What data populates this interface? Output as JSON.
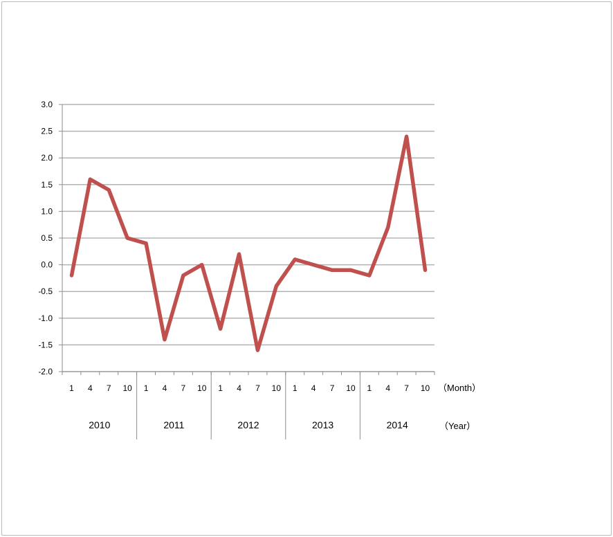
{
  "chart_data": {
    "type": "line",
    "title": "",
    "xlabel": "",
    "ylabel": "",
    "month_unit_label": "（Month）",
    "year_unit_label": "（Year）",
    "ylim": [
      -2.0,
      3.0
    ],
    "y_ticks": [
      "3.0",
      "2.5",
      "2.0",
      "1.5",
      "1.0",
      "0.5",
      "0.0",
      "-0.5",
      "-1.0",
      "-1.5",
      "-2.0"
    ],
    "y_tick_values": [
      3.0,
      2.5,
      2.0,
      1.5,
      1.0,
      0.5,
      0.0,
      -0.5,
      -1.0,
      -1.5,
      -2.0
    ],
    "years": [
      "2010",
      "2011",
      "2012",
      "2013",
      "2014"
    ],
    "months": [
      "1",
      "4",
      "7",
      "10"
    ],
    "grid": true,
    "legend": "none",
    "series": [
      {
        "color": "#c0504d",
        "values": [
          -0.2,
          1.6,
          1.4,
          0.5,
          0.4,
          -1.4,
          -0.2,
          0.0,
          -1.2,
          0.2,
          -1.6,
          -0.4,
          0.1,
          0.0,
          -0.1,
          -0.1,
          -0.2,
          0.7,
          2.4,
          -0.1
        ]
      }
    ]
  }
}
